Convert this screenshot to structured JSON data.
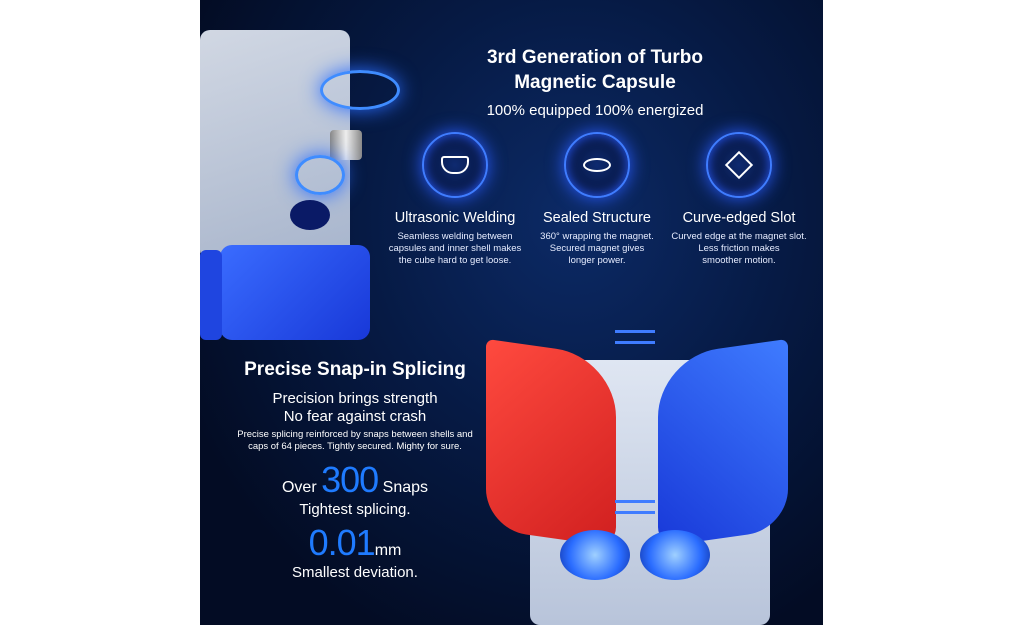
{
  "capsule": {
    "title_line1": "3rd Generation of Turbo",
    "title_line2": "Magnetic Capsule",
    "subtitle": "100% equipped  100% energized"
  },
  "features": [
    {
      "icon": "capsule-cup-icon",
      "title": "Ultrasonic Welding",
      "desc": [
        "Seamless welding between",
        "capsules and inner shell makes",
        "the cube hard to get  loose."
      ]
    },
    {
      "icon": "sealed-disc-icon",
      "title": "Sealed Structure",
      "desc": [
        "360° wrapping the magnet.",
        "Secured magnet gives",
        "longer power."
      ]
    },
    {
      "icon": "cube-slot-icon",
      "title": "Curve-edged Slot",
      "desc": [
        "Curved edge at the magnet slot.",
        "Less friction makes",
        "smoother motion."
      ]
    }
  ],
  "splicing": {
    "title": "Precise Snap-in Splicing",
    "line1": "Precision brings strength",
    "line2": "No fear against crash",
    "desc1": "Precise splicing reinforced by snaps between shells and",
    "desc2": "caps of 64 pieces. Tightly secured. Mighty for sure.",
    "snaps_prefix": "Over",
    "snaps_value": "300",
    "snaps_suffix": "Snaps",
    "snaps_caption": "Tightest splicing.",
    "dev_value": "0.01",
    "dev_unit": "mm",
    "dev_caption": "Smallest deviation."
  },
  "colors": {
    "accent": "#1f7bff",
    "background": "#061a44",
    "red": "#e8322e",
    "blue": "#1e5bff"
  }
}
